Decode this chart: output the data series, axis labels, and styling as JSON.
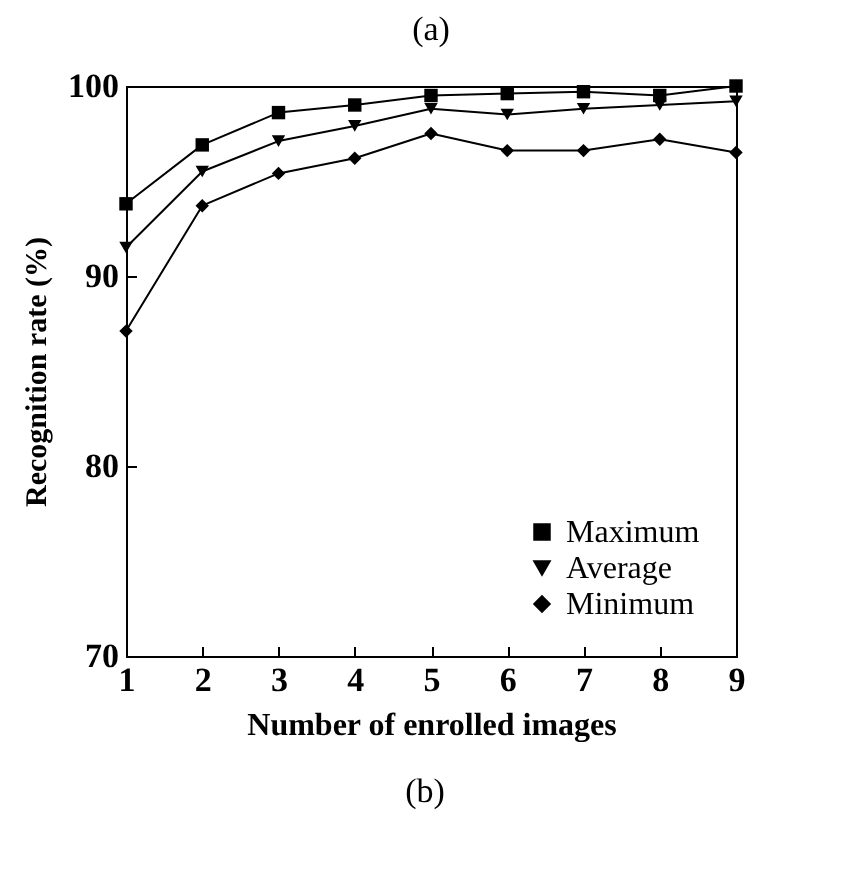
{
  "chart_data": {
    "type": "line",
    "title": "(a)",
    "annotations": [
      "(b)"
    ],
    "xlabel": "Number of enrolled images",
    "ylabel": "Recognition rate (%)",
    "x": [
      1,
      2,
      3,
      4,
      5,
      6,
      7,
      8,
      9
    ],
    "xlim": [
      1,
      9
    ],
    "xticks": [
      1,
      2,
      3,
      4,
      5,
      6,
      7,
      8,
      9
    ],
    "ylim": [
      70,
      100
    ],
    "yticks": [
      70,
      80,
      90,
      100
    ],
    "grid": false,
    "legend": "bottom right",
    "line_style": "solid",
    "series": [
      {
        "name": "Maximum",
        "color": "#000000",
        "marker": "square",
        "values": [
          93.8,
          96.9,
          98.6,
          99.0,
          99.5,
          99.6,
          99.7,
          99.5,
          100
        ]
      },
      {
        "name": "Average",
        "color": "#000000",
        "marker": "triangle",
        "values": [
          91.5,
          95.5,
          97.1,
          97.9,
          98.8,
          98.5,
          98.8,
          99.0,
          99.2
        ]
      },
      {
        "name": "Minimum",
        "color": "#000000",
        "marker": "diamond",
        "values": [
          87.1,
          93.7,
          95.4,
          96.2,
          97.5,
          96.6,
          96.6,
          97.2,
          96.5
        ]
      }
    ]
  }
}
